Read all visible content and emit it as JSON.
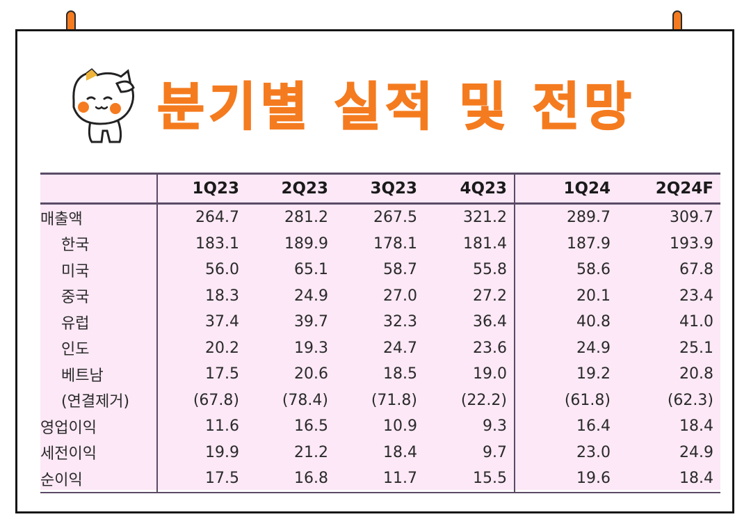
{
  "title": "분기별 실적 및 전망",
  "table": {
    "columns": [
      "",
      "1Q23",
      "2Q23",
      "3Q23",
      "4Q23",
      "1Q24",
      "2Q24F"
    ],
    "rows": [
      {
        "label": "매출액",
        "indent": false,
        "values": [
          "264.7",
          "281.2",
          "267.5",
          "321.2",
          "289.7",
          "309.7"
        ]
      },
      {
        "label": "한국",
        "indent": true,
        "values": [
          "183.1",
          "189.9",
          "178.1",
          "181.4",
          "187.9",
          "193.9"
        ]
      },
      {
        "label": "미국",
        "indent": true,
        "values": [
          "56.0",
          "65.1",
          "58.7",
          "55.8",
          "58.6",
          "67.8"
        ]
      },
      {
        "label": "중국",
        "indent": true,
        "values": [
          "18.3",
          "24.9",
          "27.0",
          "27.2",
          "20.1",
          "23.4"
        ]
      },
      {
        "label": "유럽",
        "indent": true,
        "values": [
          "37.4",
          "39.7",
          "32.3",
          "36.4",
          "40.8",
          "41.0"
        ]
      },
      {
        "label": "인도",
        "indent": true,
        "values": [
          "20.2",
          "19.3",
          "24.7",
          "23.6",
          "24.9",
          "25.1"
        ]
      },
      {
        "label": "베트남",
        "indent": true,
        "values": [
          "17.5",
          "20.6",
          "18.5",
          "19.0",
          "19.2",
          "20.8"
        ]
      },
      {
        "label": "(연결제거)",
        "indent": true,
        "values": [
          "(67.8)",
          "(78.4)",
          "(71.8)",
          "(22.2)",
          "(61.8)",
          "(62.3)"
        ]
      },
      {
        "label": "영업이익",
        "indent": false,
        "values": [
          "11.6",
          "16.5",
          "10.9",
          "9.3",
          "16.4",
          "18.4"
        ]
      },
      {
        "label": "세전이익",
        "indent": false,
        "values": [
          "19.9",
          "21.2",
          "18.4",
          "9.7",
          "23.0",
          "24.9"
        ]
      },
      {
        "label": "순이익",
        "indent": false,
        "values": [
          "17.5",
          "16.8",
          "11.7",
          "15.5",
          "19.6",
          "18.4"
        ]
      }
    ]
  },
  "icons": {
    "pins": "push-pin-icon",
    "mascot": "cat-mascot-icon"
  },
  "colors": {
    "title": "#f47b1f",
    "table_bg": "#fce8f6",
    "rule": "#5b4a66",
    "pin": "#f47b1f"
  }
}
